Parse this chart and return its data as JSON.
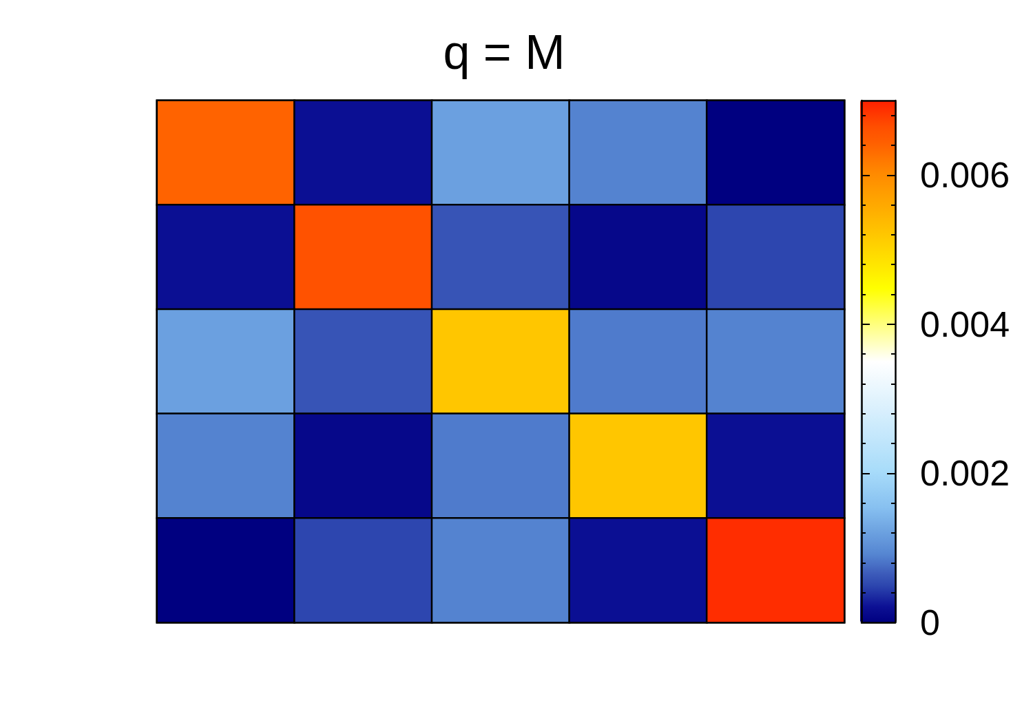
{
  "chart_data": {
    "type": "heatmap",
    "title": "q = M",
    "categories": [
      null,
      null,
      null,
      null,
      null
    ],
    "y_categories": [
      null,
      null,
      null,
      null,
      null
    ],
    "cells": [
      [
        0.0064,
        0.0002,
        0.0012,
        0.0009,
        0
      ],
      [
        0.0002,
        0.0066,
        0.0006,
        0.0001,
        0.0005
      ],
      [
        0.0012,
        0.0006,
        0.0052,
        0.00085,
        0.0009
      ],
      [
        0.0009,
        0.0001,
        0.00085,
        0.0052,
        0.0002
      ],
      [
        0,
        0.0005,
        0.0009,
        0.0002,
        0.0069
      ]
    ],
    "clim": [
      0,
      0.007
    ],
    "cticks": [
      0,
      {
        "value": 0.0004,
        "label": null
      },
      {
        "value": 0.0008,
        "label": null
      },
      {
        "value": 0.0012,
        "label": null
      },
      {
        "value": 0.0016,
        "label": null
      },
      0.002,
      {
        "value": 0.0024,
        "label": null
      },
      {
        "value": 0.0028,
        "label": null
      },
      {
        "value": 0.0032,
        "label": null
      },
      {
        "value": 0.0036,
        "label": null
      },
      0.004,
      {
        "value": 0.0044,
        "label": null
      },
      {
        "value": 0.0048,
        "label": null
      },
      {
        "value": 0.0052,
        "label": null
      },
      {
        "value": 0.0056,
        "label": null
      },
      0.006,
      {
        "value": 0.0064,
        "label": null
      },
      {
        "value": 0.0068,
        "label": null
      }
    ]
  }
}
